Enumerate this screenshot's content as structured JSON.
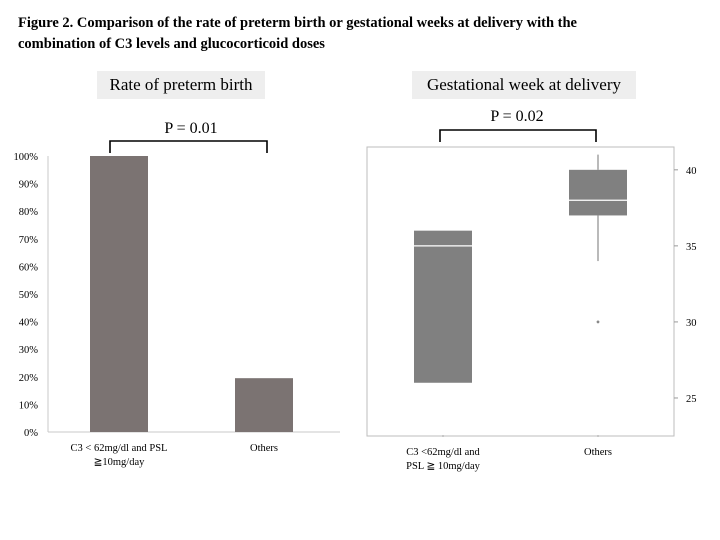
{
  "figure": {
    "title_line1": "Figure 2. Comparison of the rate of  preterm birth or gestational weeks at delivery with the",
    "title_line2": "combination of C3 levels and glucocorticoid doses"
  },
  "chart_data": [
    {
      "type": "bar",
      "title": "Rate of preterm birth",
      "categories": [
        [
          "C3 < 62mg/dl and PSL",
          "≧10mg/day"
        ],
        [
          "Others"
        ]
      ],
      "values": [
        100,
        19.5
      ],
      "ylim": [
        0,
        100
      ],
      "yticks": [
        "0%",
        "10%",
        "20%",
        "30%",
        "40%",
        "50%",
        "60%",
        "70%",
        "80%",
        "90%",
        "100%"
      ],
      "grid": false,
      "bar_color": "#7b7372",
      "p_value": "P = 0.01"
    },
    {
      "type": "box",
      "title": "Gestational week at delivery",
      "categories": [
        [
          "C3 <62mg/dl and",
          "PSL ≧ 10mg/day"
        ],
        [
          "Others"
        ]
      ],
      "boxes": [
        {
          "whisker_low": 26,
          "q1": 26,
          "median": 35,
          "q3": 36,
          "whisker_high": 36,
          "outliers": []
        },
        {
          "whisker_low": 34,
          "q1": 37,
          "median": 38,
          "q3": 40,
          "whisker_high": 41,
          "outliers": [
            30
          ]
        }
      ],
      "ylim": [
        22.5,
        41.5
      ],
      "yticks": [
        "25",
        "30",
        "35",
        "40"
      ],
      "ytick_values": [
        25,
        30,
        35,
        40
      ],
      "box_color": "#808080",
      "p_value": "P = 0.02"
    }
  ]
}
